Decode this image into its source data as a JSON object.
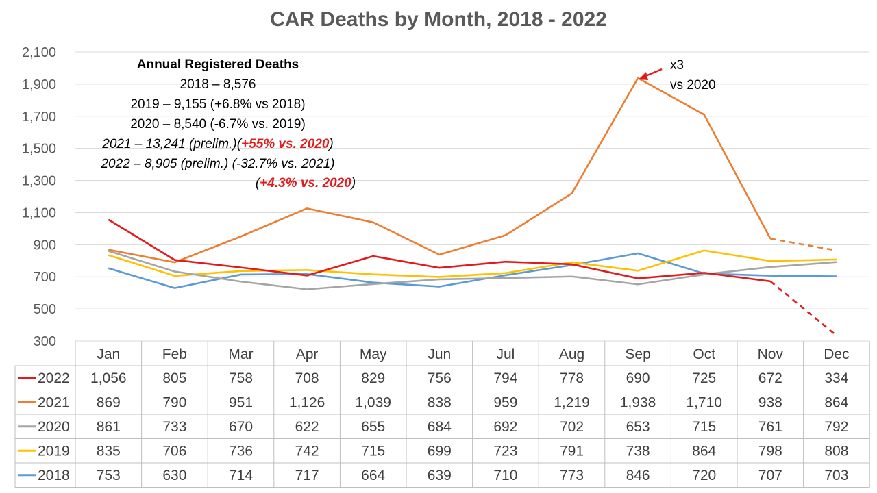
{
  "chart_data": {
    "type": "line",
    "title": "CAR Deaths by Month, 2018 - 2022",
    "xlabel": "",
    "ylabel": "",
    "ylim": [
      300,
      2100
    ],
    "yticks": [
      "2,100",
      "1,900",
      "1,700",
      "1,500",
      "1,300",
      "1,100",
      "900",
      "700",
      "500",
      "300"
    ],
    "ytick_values": [
      2100,
      1900,
      1700,
      1500,
      1300,
      1100,
      900,
      700,
      500,
      300
    ],
    "grid": true,
    "legend": "data-table",
    "categories": [
      "Jan",
      "Feb",
      "Mar",
      "Apr",
      "May",
      "Jun",
      "Jul",
      "Aug",
      "Sep",
      "Oct",
      "Nov",
      "Dec"
    ],
    "series": [
      {
        "name": "2022",
        "color": "#E31A1C",
        "values": [
          1056,
          805,
          758,
          708,
          829,
          756,
          794,
          778,
          690,
          725,
          672,
          334
        ],
        "labels": [
          "1,056",
          "805",
          "758",
          "708",
          "829",
          "756",
          "794",
          "778",
          "690",
          "725",
          "672",
          "334"
        ],
        "dashed_from": 10
      },
      {
        "name": "2021",
        "color": "#ED7D31",
        "values": [
          869,
          790,
          951,
          1126,
          1039,
          838,
          959,
          1219,
          1938,
          1710,
          938,
          864
        ],
        "labels": [
          "869",
          "790",
          "951",
          "1,126",
          "1,039",
          "838",
          "959",
          "1,219",
          "1,938",
          "1,710",
          "938",
          "864"
        ],
        "dashed_from": 10
      },
      {
        "name": "2020",
        "color": "#A5A5A5",
        "values": [
          861,
          733,
          670,
          622,
          655,
          684,
          692,
          702,
          653,
          715,
          761,
          792
        ],
        "labels": [
          "861",
          "733",
          "670",
          "622",
          "655",
          "684",
          "692",
          "702",
          "653",
          "715",
          "761",
          "792"
        ]
      },
      {
        "name": "2019",
        "color": "#FFC000",
        "values": [
          835,
          706,
          736,
          742,
          715,
          699,
          723,
          791,
          738,
          864,
          798,
          808
        ],
        "labels": [
          "835",
          "706",
          "736",
          "742",
          "715",
          "699",
          "723",
          "791",
          "738",
          "864",
          "798",
          "808"
        ]
      },
      {
        "name": "2018",
        "color": "#5B9BD5",
        "values": [
          753,
          630,
          714,
          717,
          664,
          639,
          710,
          773,
          846,
          720,
          707,
          703
        ],
        "labels": [
          "753",
          "630",
          "714",
          "717",
          "664",
          "639",
          "710",
          "773",
          "846",
          "720",
          "707",
          "703"
        ]
      }
    ],
    "annotations": {
      "header": "Annual Registered Deaths",
      "lines": [
        {
          "parts": [
            {
              "text": "2018 – 8,576",
              "style": "normal"
            }
          ]
        },
        {
          "parts": [
            {
              "text": "2019 – 9,155 (+6.8% vs 2018)",
              "style": "normal"
            }
          ]
        },
        {
          "parts": [
            {
              "text": "2020 – 8,540 (-6.7% vs. 2019)",
              "style": "normal"
            }
          ]
        },
        {
          "parts": [
            {
              "text": "2021 – 13,241 (prelim.)(",
              "style": "italic"
            },
            {
              "text": "+55% vs. 2020",
              "style": "red"
            },
            {
              "text": ")",
              "style": "italic"
            }
          ]
        },
        {
          "parts": [
            {
              "text": "2022 – 8,905 (prelim.) (-32.7% vs. 2021)",
              "style": "italic"
            }
          ]
        },
        {
          "parts": [
            {
              "text": "(",
              "style": "italic"
            },
            {
              "text": "+4.3% vs. 2020",
              "style": "red"
            },
            {
              "text": ")",
              "style": "italic"
            }
          ]
        }
      ],
      "callout": [
        "x3",
        "vs 2020"
      ]
    }
  }
}
